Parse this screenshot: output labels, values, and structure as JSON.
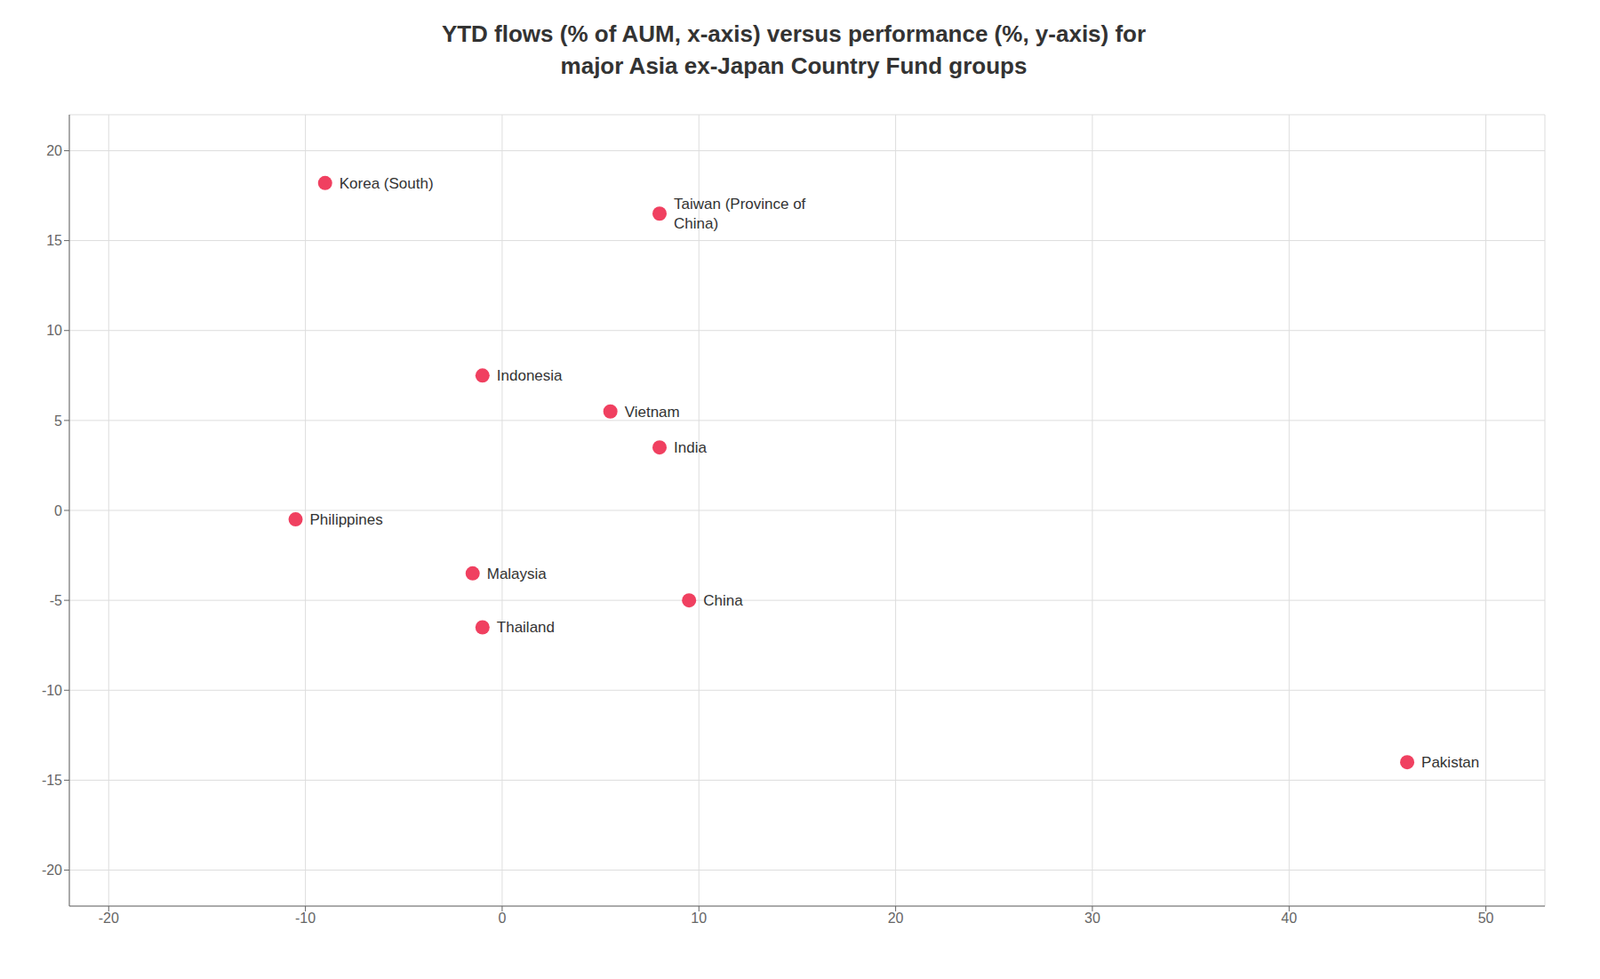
{
  "chart_data": {
    "type": "scatter",
    "title": "YTD flows (% of AUM, x-axis) versus performance (%, y-axis) for\nmajor Asia ex-Japan Country Fund groups",
    "x": [
      -9.0,
      8.0,
      -1.0,
      5.5,
      8.0,
      -10.5,
      -1.5,
      9.5,
      -1.0,
      46.0
    ],
    "values": [
      18.2,
      16.5,
      7.5,
      5.5,
      3.5,
      -0.5,
      -3.5,
      -5.0,
      -6.5,
      -14.0
    ],
    "annotations": [
      "Korea (South)",
      "Taiwan (Province of\nChina)",
      "Indonesia",
      "Vietnam",
      "India",
      "Philippines",
      "Malaysia",
      "China",
      "Thailand",
      "Pakistan"
    ],
    "color": "#f04060",
    "xlim": [
      -22,
      53
    ],
    "ylim": [
      -22,
      22
    ],
    "xticks": [
      -20,
      -10,
      0,
      10,
      20,
      30,
      40,
      50
    ],
    "yticks": [
      -20,
      -15,
      -10,
      -5,
      0,
      5,
      10,
      15,
      20
    ],
    "grid": true
  }
}
